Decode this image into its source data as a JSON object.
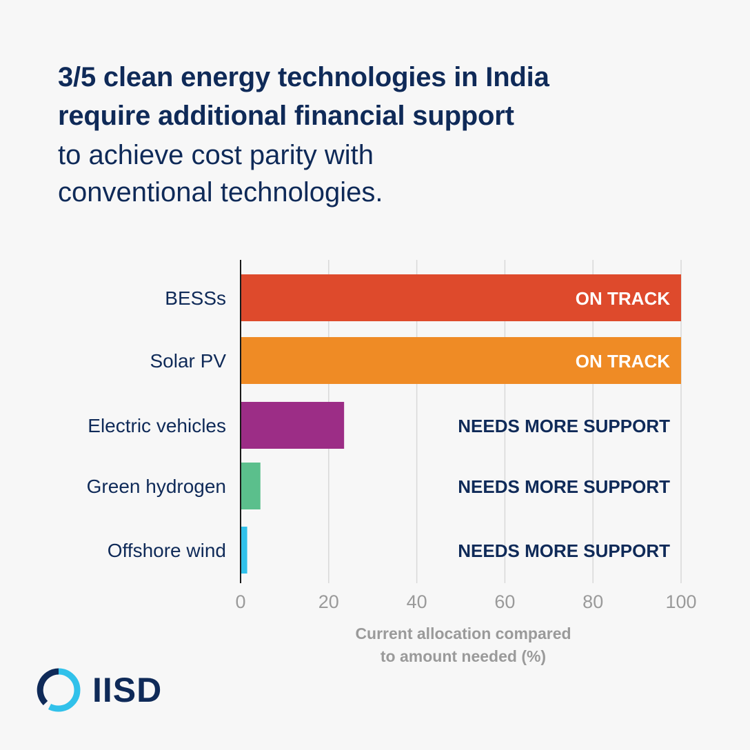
{
  "title": {
    "bold_lines": [
      "3/5 clean energy technologies in India",
      "require additional financial support"
    ],
    "light_lines": [
      "to achieve cost parity with",
      "conventional technologies."
    ]
  },
  "chart_data": {
    "type": "bar",
    "orientation": "horizontal",
    "categories": [
      "BESSs",
      "Solar PV",
      "Electric vehicles",
      "Green hydrogen",
      "Offshore wind"
    ],
    "values": [
      100,
      100,
      23.5,
      4.5,
      1.5
    ],
    "status_labels": [
      "ON TRACK",
      "ON TRACK",
      "NEEDS MORE SUPPORT",
      "NEEDS MORE SUPPORT",
      "NEEDS MORE SUPPORT"
    ],
    "colors": [
      "#de4a2c",
      "#ef8b25",
      "#9c2d86",
      "#5bbf8c",
      "#31c1ea"
    ],
    "status_colors": [
      "#ffffff",
      "#ffffff",
      "#0f2a58",
      "#0f2a58",
      "#0f2a58"
    ],
    "xlim": [
      0,
      100
    ],
    "xticks": [
      0,
      20,
      40,
      60,
      80,
      100
    ],
    "xlabel_lines": [
      "Current allocation compared",
      "to amount needed (%)"
    ],
    "grid": true
  },
  "logo": {
    "text": "IISD",
    "colors": [
      "#0f2a58",
      "#31c1ea"
    ]
  }
}
